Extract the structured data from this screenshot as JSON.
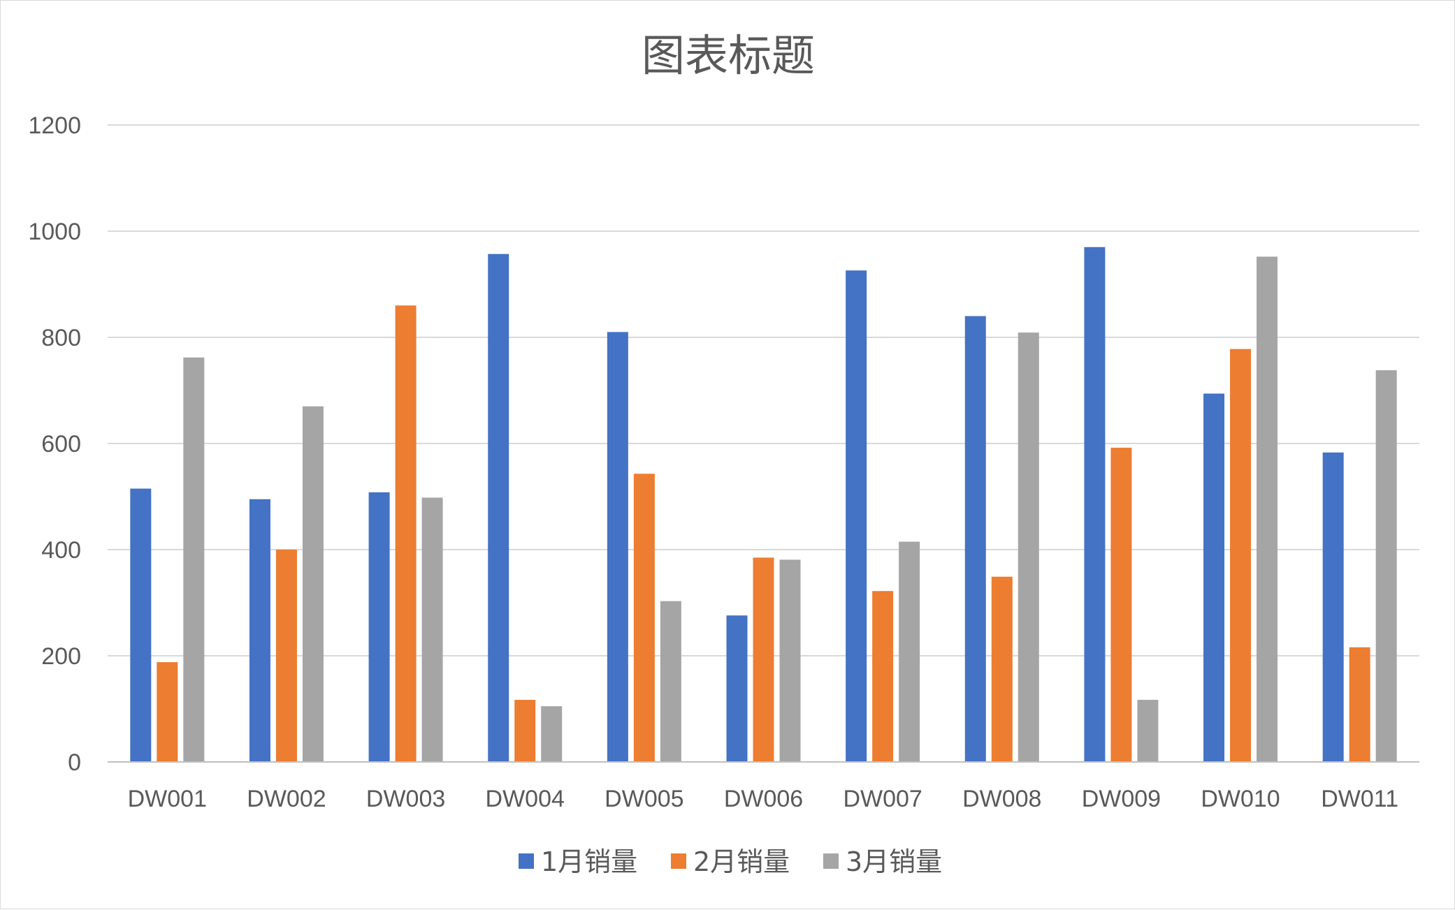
{
  "chart_data": {
    "type": "bar",
    "title": "图表标题",
    "xlabel": "",
    "ylabel": "",
    "ylim": [
      0,
      1200
    ],
    "yticks": [
      0,
      200,
      400,
      600,
      800,
      1000,
      1200
    ],
    "grid": true,
    "legend_position": "bottom",
    "categories": [
      "DW001",
      "DW002",
      "DW003",
      "DW004",
      "DW005",
      "DW006",
      "DW007",
      "DW008",
      "DW009",
      "DW010",
      "DW011"
    ],
    "series": [
      {
        "name": "1月销量",
        "color": "#4472C4",
        "values": [
          515,
          495,
          508,
          957,
          810,
          276,
          926,
          840,
          970,
          694,
          583
        ]
      },
      {
        "name": "2月销量",
        "color": "#ED7D31",
        "values": [
          188,
          400,
          860,
          117,
          543,
          385,
          322,
          349,
          592,
          778,
          216
        ]
      },
      {
        "name": "3月销量",
        "color": "#A5A5A5",
        "values": [
          762,
          670,
          498,
          105,
          303,
          381,
          415,
          809,
          117,
          952,
          738
        ]
      }
    ]
  }
}
